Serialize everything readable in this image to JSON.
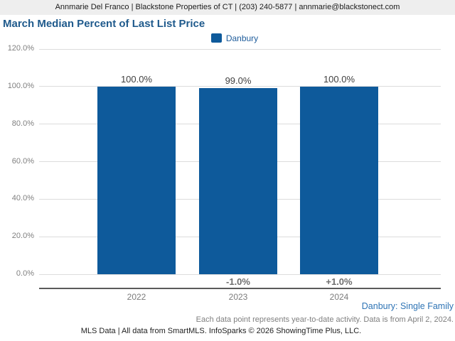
{
  "header": {
    "contact_line": "Annmarie Del Franco | Blackstone Properties of CT | (203) 240-5877 | annmarie@blackstonect.com"
  },
  "title": "March Median Percent of Last List Price",
  "legend": {
    "items": [
      {
        "label": "Danbury",
        "color": "#0e5a9b"
      }
    ]
  },
  "chart_data": {
    "type": "bar",
    "title": "March Median Percent of Last List Price",
    "categories": [
      "2022",
      "2023",
      "2024"
    ],
    "series": [
      {
        "name": "Danbury",
        "values": [
          100.0,
          99.0,
          100.0
        ]
      }
    ],
    "bar_value_labels": [
      "100.0%",
      "99.0%",
      "100.0%"
    ],
    "change_labels": [
      "",
      "-1.0%",
      "+1.0%"
    ],
    "ylim": [
      0,
      120
    ],
    "yticks": [
      120,
      100,
      80,
      60,
      40,
      20,
      0
    ],
    "ytick_labels": [
      "120.0%",
      "100.0%",
      "80.0%",
      "60.0%",
      "40.0%",
      "20.0%",
      "0.0%"
    ],
    "grid": true,
    "legend_position": "top-center",
    "bar_color": "#0e5a9b"
  },
  "footer": {
    "series_note": "Danbury: Single Family",
    "data_note": "Each data point represents year-to-date activity. Data is from April 2, 2024.",
    "copyright": "MLS Data | All data from SmartMLS. InfoSparks © 2026 ShowingTime Plus, LLC."
  }
}
